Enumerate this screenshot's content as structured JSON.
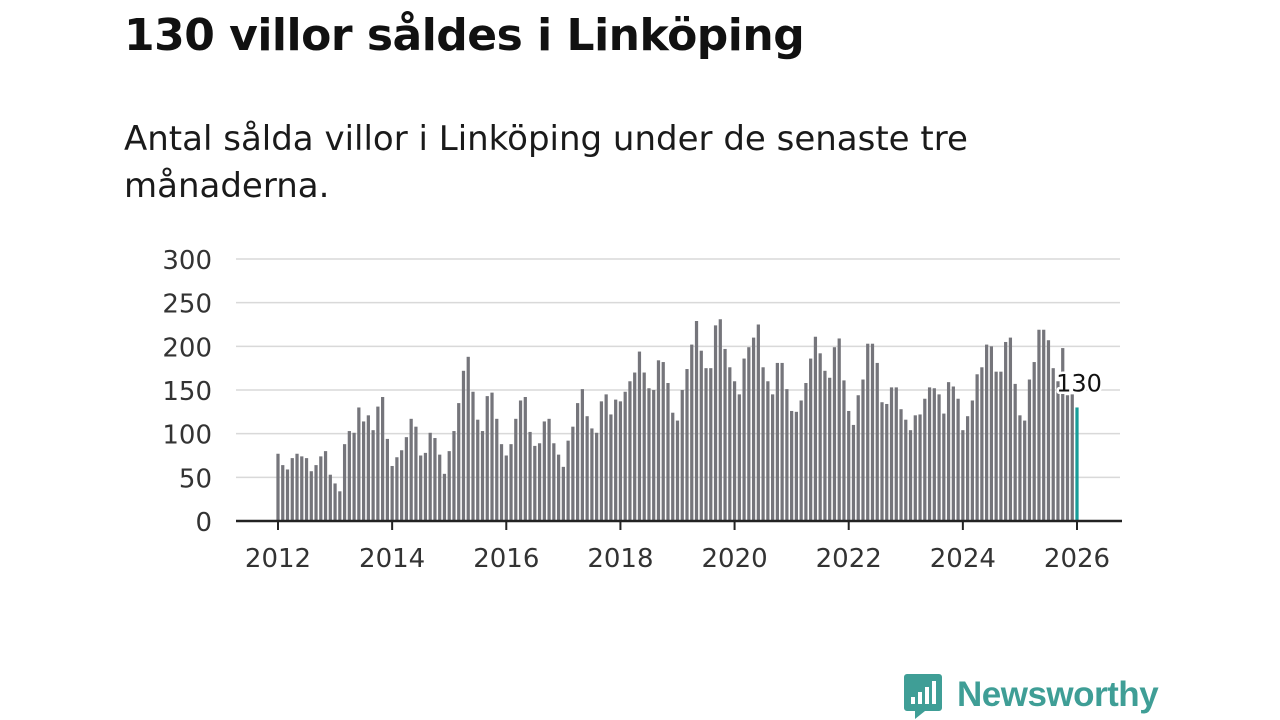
{
  "title": "130 villor såldes i Linköping",
  "subtitle": "Antal sålda villor i Linköping under de senaste tre månaderna.",
  "brand": {
    "name": "Newsworthy",
    "color": "#3f9e96"
  },
  "colors": {
    "bar": "#75757b",
    "highlight": "#179d99",
    "grid": "#d9d9d9",
    "axis": "#222222"
  },
  "chart_data": {
    "type": "bar",
    "title": "",
    "xlabel": "",
    "ylabel": "",
    "ylim": [
      0,
      300
    ],
    "xlim": [
      2012,
      2026
    ],
    "yticks": [
      "0",
      "50",
      "100",
      "150",
      "200",
      "250",
      "300"
    ],
    "xticks": [
      "2012",
      "2014",
      "2016",
      "2018",
      "2020",
      "2022",
      "2024",
      "2026"
    ],
    "start": "2012-01",
    "annotation": {
      "label": "130",
      "period": "2026-01",
      "value": 130
    },
    "values": [
      77,
      64,
      59,
      72,
      77,
      74,
      72,
      57,
      64,
      74,
      80,
      53,
      43,
      34,
      88,
      103,
      101,
      130,
      114,
      121,
      104,
      131,
      142,
      94,
      63,
      73,
      81,
      96,
      117,
      108,
      75,
      78,
      101,
      95,
      76,
      54,
      80,
      103,
      135,
      172,
      188,
      148,
      116,
      103,
      143,
      147,
      117,
      88,
      75,
      88,
      117,
      138,
      142,
      102,
      86,
      89,
      114,
      117,
      89,
      76,
      62,
      92,
      108,
      135,
      151,
      120,
      106,
      101,
      137,
      145,
      122,
      139,
      137,
      148,
      160,
      170,
      194,
      170,
      152,
      150,
      184,
      182,
      158,
      124,
      115,
      150,
      174,
      202,
      229,
      195,
      175,
      175,
      224,
      231,
      197,
      176,
      160,
      145,
      186,
      199,
      210,
      225,
      176,
      160,
      145,
      181,
      181,
      151,
      126,
      125,
      138,
      158,
      186,
      211,
      192,
      172,
      164,
      199,
      209,
      161,
      126,
      110,
      144,
      162,
      203,
      203,
      181,
      136,
      134,
      153,
      153,
      128,
      116,
      104,
      121,
      122,
      140,
      153,
      152,
      145,
      123,
      159,
      154,
      140,
      104,
      120,
      138,
      168,
      176,
      202,
      200,
      171,
      171,
      205,
      210,
      157,
      121,
      115,
      162,
      182,
      219,
      219,
      207,
      175,
      160,
      198,
      144,
      145,
      130
    ]
  }
}
